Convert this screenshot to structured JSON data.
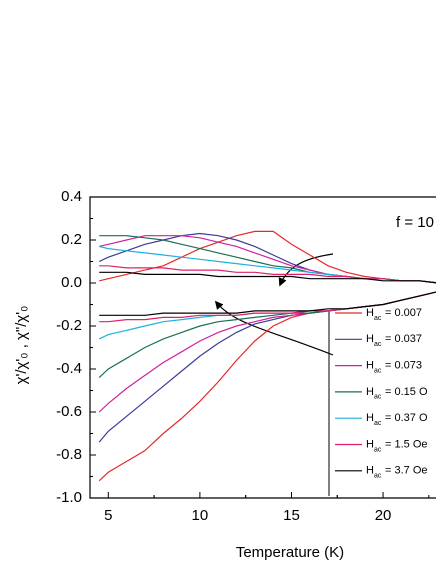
{
  "chart_data": {
    "type": "line",
    "annotation": "f = 10",
    "x_label": "Temperature (K)",
    "y_label": "χ'/χ'₀ ,  χ\"/χ'₀",
    "legend_symbol": {
      "main": "H",
      "sub": "ac"
    },
    "x": [
      4.5,
      5,
      6,
      7,
      8,
      9,
      10,
      11,
      12,
      13,
      14,
      15,
      16,
      17,
      18,
      19,
      20,
      21,
      22,
      23
    ],
    "xlim": [
      4,
      23
    ],
    "xticks": [
      5,
      10,
      15,
      20
    ],
    "ylim": [
      -1.0,
      0.4
    ],
    "yticks": [
      {
        "value": -1.0,
        "label": "-1.0"
      },
      -0.8,
      -0.6,
      -0.4,
      -0.2,
      {
        "value": 0,
        "label": "0.0"
      },
      0.2,
      0.4
    ],
    "series": [
      {
        "name": "= 0.007",
        "color": "#e8292a",
        "values": [
          -0.92,
          -0.88,
          -0.83,
          -0.78,
          -0.7,
          -0.63,
          -0.55,
          -0.46,
          -0.36,
          -0.27,
          -0.2,
          -0.16,
          -0.14,
          -0.13,
          -0.12,
          -0.11,
          -0.1,
          -0.08,
          -0.06,
          -0.04
        ],
        "values2": [
          0.01,
          0.02,
          0.04,
          0.06,
          0.08,
          0.12,
          0.16,
          0.19,
          0.22,
          0.24,
          0.24,
          0.18,
          0.13,
          0.08,
          0.05,
          0.03,
          0.02,
          0.01,
          0.01,
          0.0
        ]
      },
      {
        "name": "= 0.037",
        "color": "#3b3b9a",
        "values": [
          -0.74,
          -0.69,
          -0.62,
          -0.55,
          -0.48,
          -0.41,
          -0.34,
          -0.28,
          -0.23,
          -0.19,
          -0.17,
          -0.15,
          -0.14,
          -0.13,
          -0.12,
          -0.11,
          -0.1,
          -0.08,
          -0.06,
          -0.04
        ],
        "values2": [
          0.1,
          0.12,
          0.15,
          0.18,
          0.2,
          0.22,
          0.23,
          0.22,
          0.2,
          0.17,
          0.13,
          0.09,
          0.06,
          0.04,
          0.03,
          0.02,
          0.02,
          0.01,
          0.01,
          0.0
        ]
      },
      {
        "name": "= 0.073",
        "color": "#d020a0",
        "values": [
          -0.6,
          -0.56,
          -0.49,
          -0.43,
          -0.37,
          -0.32,
          -0.27,
          -0.23,
          -0.2,
          -0.18,
          -0.16,
          -0.15,
          -0.14,
          -0.13,
          -0.12,
          -0.11,
          -0.1,
          -0.08,
          -0.06,
          -0.04
        ],
        "values2": [
          0.17,
          0.18,
          0.2,
          0.22,
          0.22,
          0.22,
          0.21,
          0.19,
          0.17,
          0.14,
          0.11,
          0.08,
          0.06,
          0.04,
          0.03,
          0.02,
          0.02,
          0.01,
          0.01,
          0.0
        ]
      },
      {
        "name": "= 0.15 O",
        "color": "#1a7050",
        "values": [
          -0.44,
          -0.4,
          -0.35,
          -0.3,
          -0.26,
          -0.23,
          -0.2,
          -0.18,
          -0.17,
          -0.16,
          -0.15,
          -0.14,
          -0.14,
          -0.13,
          -0.12,
          -0.11,
          -0.1,
          -0.08,
          -0.06,
          -0.04
        ],
        "values2": [
          0.22,
          0.22,
          0.22,
          0.21,
          0.2,
          0.18,
          0.16,
          0.14,
          0.12,
          0.1,
          0.08,
          0.07,
          0.05,
          0.04,
          0.03,
          0.02,
          0.02,
          0.01,
          0.01,
          0.0
        ]
      },
      {
        "name": "= 0.37 O",
        "color": "#20b0e0",
        "values": [
          -0.26,
          -0.24,
          -0.22,
          -0.2,
          -0.18,
          -0.17,
          -0.16,
          -0.15,
          -0.15,
          -0.14,
          -0.14,
          -0.14,
          -0.13,
          -0.13,
          -0.12,
          -0.11,
          -0.1,
          -0.08,
          -0.06,
          -0.04
        ],
        "values2": [
          0.17,
          0.16,
          0.15,
          0.14,
          0.13,
          0.12,
          0.11,
          0.1,
          0.09,
          0.08,
          0.07,
          0.06,
          0.05,
          0.04,
          0.03,
          0.02,
          0.02,
          0.01,
          0.01,
          0.0
        ]
      },
      {
        "name": "= 1.5 Oe",
        "color": "#e0206a",
        "values": [
          -0.18,
          -0.18,
          -0.17,
          -0.17,
          -0.16,
          -0.16,
          -0.15,
          -0.15,
          -0.15,
          -0.14,
          -0.14,
          -0.14,
          -0.13,
          -0.13,
          -0.12,
          -0.11,
          -0.1,
          -0.08,
          -0.06,
          -0.04
        ],
        "values2": [
          0.08,
          0.08,
          0.07,
          0.07,
          0.07,
          0.06,
          0.06,
          0.06,
          0.05,
          0.05,
          0.04,
          0.04,
          0.04,
          0.03,
          0.03,
          0.02,
          0.02,
          0.01,
          0.01,
          0.0
        ]
      },
      {
        "name": "= 3.7 Oe",
        "color": "#000000",
        "values": [
          -0.15,
          -0.15,
          -0.15,
          -0.15,
          -0.14,
          -0.14,
          -0.14,
          -0.14,
          -0.14,
          -0.13,
          -0.13,
          -0.13,
          -0.13,
          -0.12,
          -0.12,
          -0.11,
          -0.1,
          -0.08,
          -0.06,
          -0.04
        ],
        "values2": [
          0.05,
          0.05,
          0.05,
          0.04,
          0.04,
          0.04,
          0.04,
          0.03,
          0.03,
          0.03,
          0.03,
          0.03,
          0.02,
          0.02,
          0.02,
          0.02,
          0.01,
          0.01,
          0.01,
          0.0
        ]
      }
    ]
  }
}
